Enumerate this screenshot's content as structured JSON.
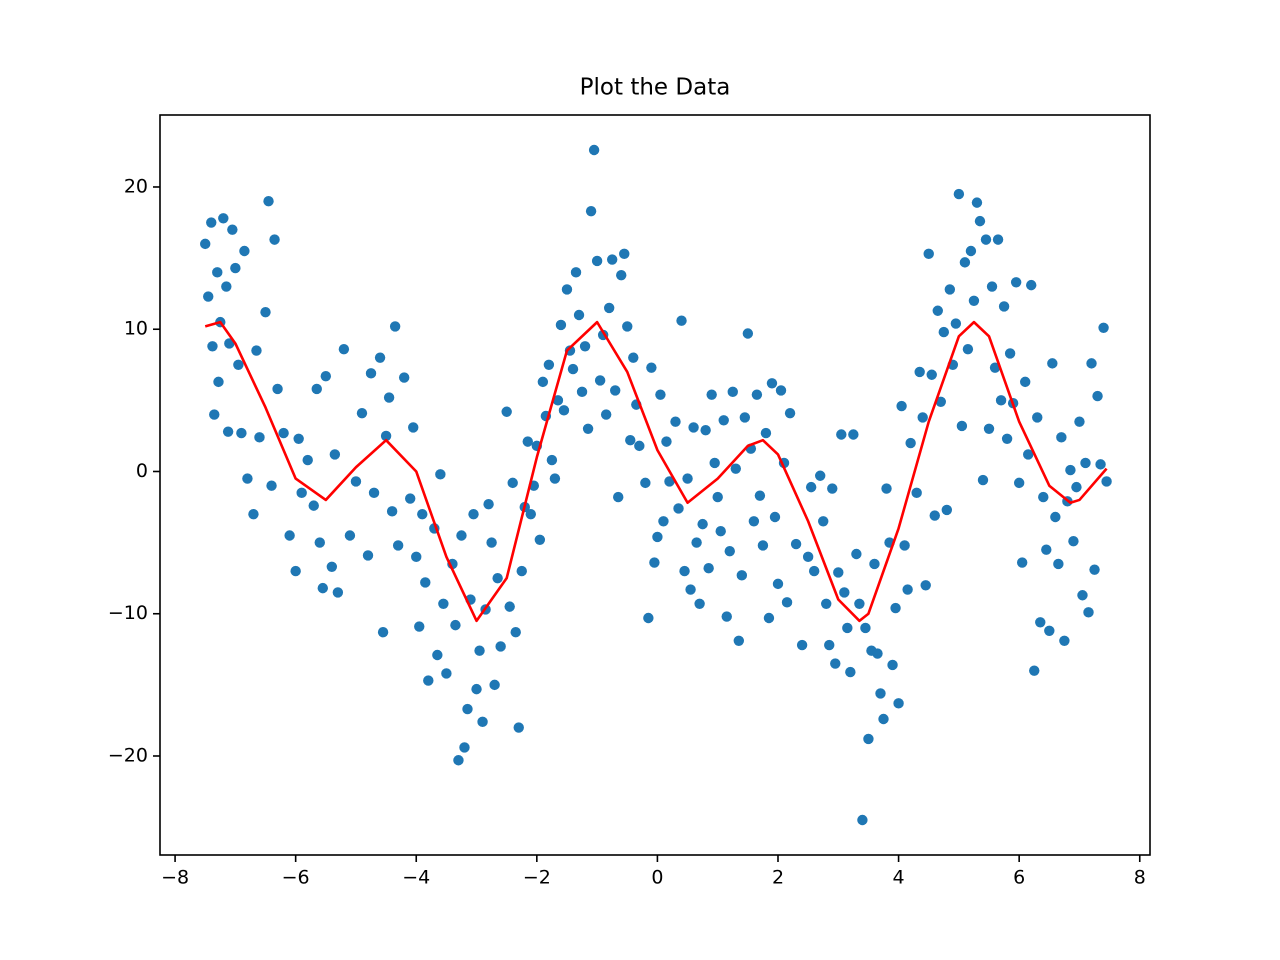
{
  "chart_data": {
    "type": "scatter",
    "title": "Plot the Data",
    "xlim": [
      -8.25,
      8.17
    ],
    "ylim": [
      -26.96,
      25.06
    ],
    "xticks": [
      {
        "value": -8,
        "label": "−8"
      },
      {
        "value": -6,
        "label": "−6"
      },
      {
        "value": -4,
        "label": "−4"
      },
      {
        "value": -2,
        "label": "−2"
      },
      0,
      2,
      4,
      6,
      8
    ],
    "yticks": [
      {
        "value": -20,
        "label": "−20"
      },
      {
        "value": -10,
        "label": "−10"
      },
      0,
      10,
      20
    ],
    "series": [
      {
        "type": "scatter",
        "color": "#1f77b4",
        "x": [
          -7.5,
          -7.45,
          -7.4,
          -7.38,
          -7.35,
          -7.3,
          -7.28,
          -7.25,
          -7.2,
          -7.15,
          -7.12,
          -7.1,
          -7.05,
          -7.0,
          -6.95,
          -6.9,
          -6.85,
          -6.8,
          -6.7,
          -6.65,
          -6.6,
          -6.5,
          -6.45,
          -6.4,
          -6.35,
          -6.3,
          -6.2,
          -6.1,
          -6.0,
          -5.95,
          -5.9,
          -5.8,
          -5.7,
          -5.65,
          -5.6,
          -5.55,
          -5.5,
          -5.4,
          -5.35,
          -5.3,
          -5.2,
          -5.1,
          -5.0,
          -4.9,
          -4.8,
          -4.75,
          -4.7,
          -4.6,
          -4.55,
          -4.5,
          -4.45,
          -4.4,
          -4.35,
          -4.3,
          -4.2,
          -4.1,
          -4.05,
          -4.0,
          -3.95,
          -3.9,
          -3.85,
          -3.8,
          -3.7,
          -3.65,
          -3.6,
          -3.55,
          -3.5,
          -3.4,
          -3.35,
          -3.3,
          -3.25,
          -3.2,
          -3.15,
          -3.1,
          -3.05,
          -3.0,
          -2.95,
          -2.9,
          -2.85,
          -2.8,
          -2.75,
          -2.7,
          -2.65,
          -2.6,
          -2.5,
          -2.45,
          -2.4,
          -2.35,
          -2.3,
          -2.25,
          -2.2,
          -2.15,
          -2.1,
          -2.05,
          -2.0,
          -1.95,
          -1.9,
          -1.85,
          -1.8,
          -1.75,
          -1.7,
          -1.65,
          -1.6,
          -1.55,
          -1.5,
          -1.45,
          -1.4,
          -1.35,
          -1.3,
          -1.25,
          -1.2,
          -1.15,
          -1.1,
          -1.05,
          -1.0,
          -0.95,
          -0.9,
          -0.85,
          -0.8,
          -0.75,
          -0.7,
          -0.65,
          -0.6,
          -0.55,
          -0.5,
          -0.45,
          -0.4,
          -0.35,
          -0.3,
          -0.2,
          -0.15,
          -0.1,
          -0.05,
          0.0,
          0.05,
          0.1,
          0.15,
          0.2,
          0.3,
          0.35,
          0.4,
          0.45,
          0.5,
          0.55,
          0.6,
          0.65,
          0.7,
          0.75,
          0.8,
          0.85,
          0.9,
          0.95,
          1.0,
          1.05,
          1.1,
          1.15,
          1.2,
          1.25,
          1.3,
          1.35,
          1.4,
          1.45,
          1.5,
          1.55,
          1.6,
          1.65,
          1.7,
          1.75,
          1.8,
          1.85,
          1.9,
          1.95,
          2.0,
          2.05,
          2.1,
          2.15,
          2.2,
          2.3,
          2.4,
          2.5,
          2.55,
          2.6,
          2.7,
          2.75,
          2.8,
          2.85,
          2.9,
          2.95,
          3.0,
          3.05,
          3.1,
          3.15,
          3.2,
          3.25,
          3.3,
          3.35,
          3.4,
          3.45,
          3.5,
          3.55,
          3.6,
          3.65,
          3.7,
          3.75,
          3.8,
          3.85,
          3.9,
          3.95,
          4.0,
          4.05,
          4.1,
          4.15,
          4.2,
          4.3,
          4.35,
          4.4,
          4.45,
          4.5,
          4.55,
          4.6,
          4.65,
          4.7,
          4.75,
          4.8,
          4.85,
          4.9,
          4.95,
          5.0,
          5.05,
          5.1,
          5.15,
          5.2,
          5.25,
          5.3,
          5.35,
          5.4,
          5.45,
          5.5,
          5.55,
          5.6,
          5.65,
          5.7,
          5.75,
          5.8,
          5.85,
          5.9,
          5.95,
          6.0,
          6.05,
          6.1,
          6.15,
          6.2,
          6.25,
          6.3,
          6.35,
          6.4,
          6.45,
          6.5,
          6.55,
          6.6,
          6.65,
          6.7,
          6.75,
          6.8,
          6.85,
          6.9,
          6.95,
          7.0,
          7.05,
          7.1,
          7.15,
          7.2,
          7.25,
          7.3,
          7.35,
          7.4,
          7.45
        ],
        "values": [
          16,
          12.3,
          17.5,
          8.8,
          4,
          14,
          6.3,
          10.5,
          17.8,
          13,
          2.8,
          9,
          17,
          14.3,
          7.5,
          2.7,
          15.5,
          -0.5,
          -3,
          8.5,
          2.4,
          11.2,
          19,
          -1,
          16.3,
          5.8,
          2.7,
          -4.5,
          -7,
          2.3,
          -1.5,
          0.8,
          -2.4,
          5.8,
          -5,
          -8.2,
          6.7,
          -6.7,
          1.2,
          -8.5,
          8.6,
          -4.5,
          -0.7,
          4.1,
          -5.9,
          6.9,
          -1.5,
          8,
          -11.3,
          2.5,
          5.2,
          -2.8,
          10.2,
          -5.2,
          6.6,
          -1.9,
          3.1,
          -6,
          -10.9,
          -3,
          -7.8,
          -14.7,
          -4,
          -12.9,
          -0.2,
          -9.3,
          -14.2,
          -6.5,
          -10.8,
          -20.3,
          -4.5,
          -19.4,
          -16.7,
          -9,
          -3,
          -15.3,
          -12.6,
          -17.6,
          -9.7,
          -2.3,
          -5,
          -15,
          -7.5,
          -12.3,
          4.2,
          -9.5,
          -0.8,
          -11.3,
          -18,
          -7,
          -2.5,
          2.1,
          -3,
          -1,
          1.8,
          -4.8,
          6.3,
          3.9,
          7.5,
          0.8,
          -0.5,
          5,
          10.3,
          4.3,
          12.8,
          8.5,
          7.2,
          14,
          11,
          5.6,
          8.8,
          3,
          18.3,
          22.6,
          14.8,
          6.4,
          9.6,
          4,
          11.5,
          14.9,
          5.7,
          -1.8,
          13.8,
          15.3,
          10.2,
          2.2,
          8,
          4.7,
          1.8,
          -0.8,
          -10.3,
          7.3,
          -6.4,
          -4.6,
          5.4,
          -3.5,
          2.1,
          -0.7,
          3.5,
          -2.6,
          10.6,
          -7,
          -0.5,
          -8.3,
          3.1,
          -5,
          -9.3,
          -3.7,
          2.9,
          -6.8,
          5.4,
          0.6,
          -1.8,
          -4.2,
          3.6,
          -10.2,
          -5.6,
          5.6,
          0.2,
          -11.9,
          -7.3,
          3.8,
          9.7,
          1.6,
          -3.5,
          5.4,
          -1.7,
          -5.2,
          2.7,
          -10.3,
          6.2,
          -3.2,
          -7.9,
          5.7,
          0.6,
          -9.2,
          4.1,
          -5.1,
          -12.2,
          -6,
          -1.1,
          -7,
          -0.3,
          -3.5,
          -9.3,
          -12.2,
          -1.2,
          -13.5,
          -7.1,
          2.6,
          -8.5,
          -11,
          -14.1,
          2.6,
          -5.8,
          -9.3,
          -24.5,
          -11,
          -18.8,
          -12.6,
          -6.5,
          -12.8,
          -15.6,
          -17.4,
          -1.2,
          -5,
          -13.6,
          -9.6,
          -16.3,
          4.6,
          -5.2,
          -8.3,
          2,
          -1.5,
          7,
          3.8,
          -8,
          15.3,
          6.8,
          -3.1,
          11.3,
          4.9,
          9.8,
          -2.7,
          12.8,
          7.5,
          10.4,
          19.5,
          3.2,
          14.7,
          8.6,
          15.5,
          12,
          18.9,
          17.6,
          -0.6,
          16.3,
          3,
          13,
          7.3,
          16.3,
          5,
          11.6,
          2.3,
          8.3,
          4.8,
          13.3,
          -0.8,
          -6.4,
          6.3,
          1.2,
          13.1,
          -14,
          3.8,
          -10.6,
          -1.8,
          -5.5,
          -11.2,
          7.6,
          -3.2,
          -6.5,
          2.4,
          -11.9,
          -2.1,
          0.1,
          -4.9,
          -1.1,
          3.5,
          -8.7,
          0.6,
          -9.9,
          7.6,
          -6.9,
          5.3,
          0.5,
          10.1,
          -0.7
        ]
      },
      {
        "type": "line",
        "color": "#ff0000",
        "x": [
          -7.5,
          -7.25,
          -7,
          -6.5,
          -6,
          -5.5,
          -5,
          -4.5,
          -4,
          -3.5,
          -3,
          -2.5,
          -2,
          -1.5,
          -1,
          -0.5,
          0,
          0.5,
          1,
          1.5,
          1.75,
          2,
          2.5,
          3,
          3.35,
          3.5,
          4,
          4.5,
          5,
          5.25,
          5.5,
          6,
          6.5,
          6.85,
          7,
          7.45
        ],
        "values": [
          10.2,
          10.5,
          9.0,
          4.5,
          -0.5,
          -2.0,
          0.3,
          2.2,
          0.0,
          -6.0,
          -10.5,
          -7.5,
          1.0,
          8.5,
          10.5,
          7.0,
          1.5,
          -2.2,
          -0.5,
          1.8,
          2.2,
          1.2,
          -3.5,
          -9.0,
          -10.5,
          -10.0,
          -4.0,
          3.5,
          9.5,
          10.5,
          9.5,
          3.5,
          -1.0,
          -2.2,
          -2.0,
          0.2
        ]
      }
    ]
  }
}
